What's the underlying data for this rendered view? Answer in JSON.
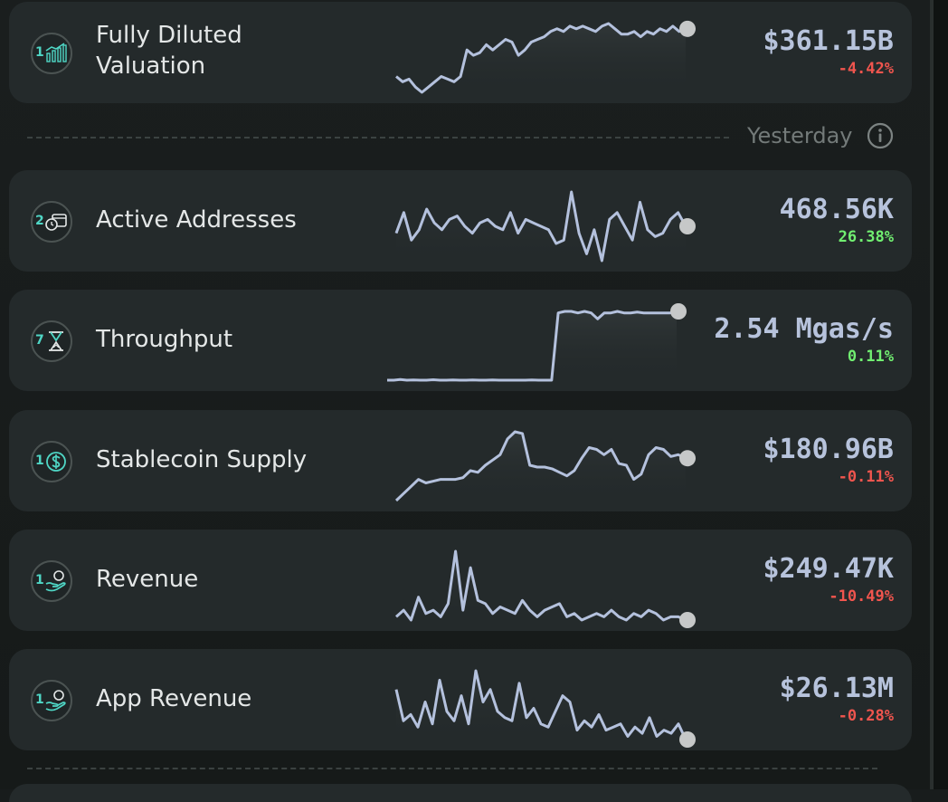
{
  "section_label": "Yesterday",
  "metrics": [
    {
      "id": "fdv",
      "rank": "1",
      "icon": "valuation-chart-icon",
      "label_line1": "Fully Diluted",
      "label_line2": "Valuation",
      "value": "$361.15B",
      "change": "-4.42%",
      "change_direction": "negative",
      "series": [
        30,
        28,
        29,
        26,
        24,
        26,
        28,
        30,
        29,
        28,
        30,
        40,
        38,
        39,
        42,
        40,
        42,
        44,
        43,
        38,
        40,
        43,
        44,
        45,
        47,
        48,
        47,
        49,
        48,
        49,
        48,
        47,
        49,
        50,
        48,
        46,
        46,
        47,
        45,
        47,
        46,
        48,
        47,
        49,
        47,
        48
      ]
    },
    {
      "id": "active-addresses",
      "rank": "2",
      "icon": "wallet-clock-icon",
      "label": "Active Addresses",
      "value": "468.56K",
      "change": "26.38%",
      "change_direction": "positive",
      "series": [
        46,
        52,
        44,
        47,
        53,
        49,
        47,
        50,
        51,
        48,
        46,
        49,
        50,
        48,
        47,
        52,
        46,
        50,
        49,
        48,
        47,
        43,
        44,
        58,
        46,
        40,
        47,
        38,
        50,
        52,
        48,
        44,
        55,
        47,
        45,
        46,
        50,
        52,
        48
      ]
    },
    {
      "id": "throughput",
      "rank": "7",
      "icon": "hourglass-icon",
      "label": "Throughput",
      "value": "2.54 Mgas/s",
      "change": "0.11%",
      "change_direction": "positive",
      "series": [
        5,
        5,
        5.5,
        5,
        5.2,
        5,
        5,
        5.3,
        5,
        5,
        5.1,
        5,
        5,
        5.1,
        5,
        5,
        5.2,
        5,
        5,
        5,
        5,
        5,
        5.1,
        5,
        5,
        5,
        50,
        51,
        51,
        50,
        51,
        50,
        46,
        50,
        50,
        51,
        50,
        50,
        50.5,
        50,
        50,
        50,
        50,
        50,
        51
      ]
    },
    {
      "id": "stablecoin-supply",
      "rank": "1",
      "icon": "dollar-coin-icon",
      "label": "Stablecoin Supply",
      "value": "$180.96B",
      "change": "-0.11%",
      "change_direction": "negative",
      "series": [
        10,
        14,
        18,
        22,
        20,
        21,
        22,
        22,
        22,
        23,
        27,
        26,
        30,
        33,
        36,
        45,
        49,
        48,
        30,
        29,
        29,
        28,
        26,
        24,
        27,
        34,
        40,
        39,
        36,
        39,
        31,
        30,
        22,
        25,
        36,
        40,
        39,
        35,
        36,
        34
      ]
    },
    {
      "id": "revenue",
      "rank": "1",
      "icon": "coin-hand-icon",
      "label": "Revenue",
      "value": "$249.47K",
      "change": "-10.49%",
      "change_direction": "negative",
      "series": [
        10,
        12,
        9,
        16,
        11,
        12,
        10,
        14,
        30,
        12,
        25,
        15,
        14,
        11,
        13,
        12,
        11,
        15,
        12,
        10,
        12,
        13,
        14,
        10,
        11,
        9,
        10,
        11,
        10,
        12,
        10,
        9,
        11,
        10,
        12,
        11,
        9,
        10,
        10,
        9
      ]
    },
    {
      "id": "app-revenue",
      "rank": "1",
      "icon": "coin-hand-icon",
      "label": "App Revenue",
      "value": "$26.13M",
      "change": "-0.28%",
      "change_direction": "negative",
      "series": [
        42,
        32,
        34,
        30,
        38,
        31,
        45,
        35,
        32,
        40,
        31,
        48,
        38,
        42,
        35,
        33,
        32,
        44,
        33,
        36,
        31,
        30,
        35,
        40,
        38,
        29,
        32,
        30,
        34,
        29,
        30,
        31,
        27,
        30,
        28,
        33,
        27,
        29,
        28,
        31,
        26
      ]
    }
  ],
  "colors": {
    "accent_teal": "#4fd6c5",
    "value_text": "#b7c3dc",
    "negative": "#f0554e",
    "positive": "#71ef71",
    "spark_line": "#b4c1dd"
  }
}
